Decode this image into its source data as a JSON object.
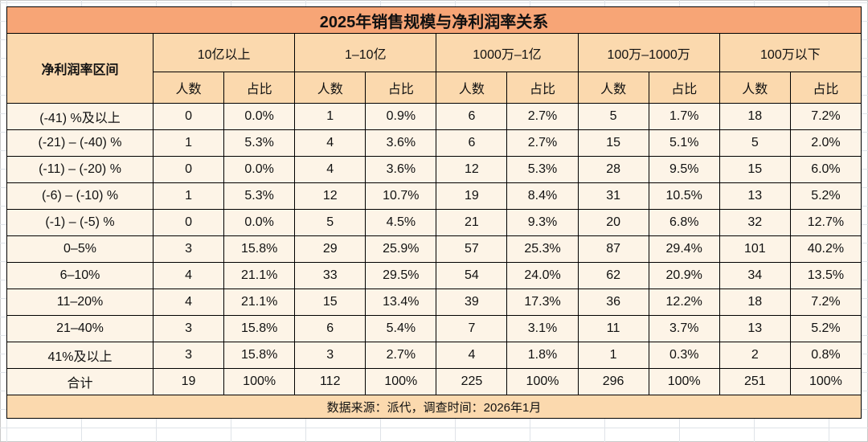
{
  "colors": {
    "title-bg": "#F7A576",
    "header-bg": "#FBD9AE",
    "body-bg": "#FDF4E7",
    "border": "#000000",
    "grid-line": "#dfe3e8"
  },
  "chart_data": {
    "type": "table",
    "title": "2025年销售规模与净利润率关系",
    "row_header": "净利润率区间",
    "column_groups": [
      "10亿以上",
      "1–10亿",
      "1000万–1亿",
      "100万–1000万",
      "100万以下"
    ],
    "sub_columns": [
      "人数",
      "占比"
    ],
    "rows": [
      {
        "label": "(-41) %及以上",
        "values": [
          "0",
          "0.0%",
          "1",
          "0.9%",
          "6",
          "2.7%",
          "5",
          "1.7%",
          "18",
          "7.2%"
        ]
      },
      {
        "label": "(-21) – (-40) %",
        "values": [
          "1",
          "5.3%",
          "4",
          "3.6%",
          "6",
          "2.7%",
          "15",
          "5.1%",
          "5",
          "2.0%"
        ]
      },
      {
        "label": "(-11) – (-20) %",
        "values": [
          "0",
          "0.0%",
          "4",
          "3.6%",
          "12",
          "5.3%",
          "28",
          "9.5%",
          "15",
          "6.0%"
        ]
      },
      {
        "label": "(-6) – (-10) %",
        "values": [
          "1",
          "5.3%",
          "12",
          "10.7%",
          "19",
          "8.4%",
          "31",
          "10.5%",
          "13",
          "5.2%"
        ]
      },
      {
        "label": "(-1) – (-5) %",
        "values": [
          "0",
          "0.0%",
          "5",
          "4.5%",
          "21",
          "9.3%",
          "20",
          "6.8%",
          "32",
          "12.7%"
        ]
      },
      {
        "label": "0–5%",
        "values": [
          "3",
          "15.8%",
          "29",
          "25.9%",
          "57",
          "25.3%",
          "87",
          "29.4%",
          "101",
          "40.2%"
        ]
      },
      {
        "label": "6–10%",
        "values": [
          "4",
          "21.1%",
          "33",
          "29.5%",
          "54",
          "24.0%",
          "62",
          "20.9%",
          "34",
          "13.5%"
        ]
      },
      {
        "label": "11–20%",
        "values": [
          "4",
          "21.1%",
          "15",
          "13.4%",
          "39",
          "17.3%",
          "36",
          "12.2%",
          "18",
          "7.2%"
        ]
      },
      {
        "label": "21–40%",
        "values": [
          "3",
          "15.8%",
          "6",
          "5.4%",
          "7",
          "3.1%",
          "11",
          "3.7%",
          "13",
          "5.2%"
        ]
      },
      {
        "label": "41%及以上",
        "values": [
          "3",
          "15.8%",
          "3",
          "2.7%",
          "4",
          "1.8%",
          "1",
          "0.3%",
          "2",
          "0.8%"
        ]
      },
      {
        "label": "合计",
        "values": [
          "19",
          "100%",
          "112",
          "100%",
          "225",
          "100%",
          "296",
          "100%",
          "251",
          "100%"
        ]
      }
    ],
    "footer": "数据来源：派代，调查时间：2026年1月"
  }
}
